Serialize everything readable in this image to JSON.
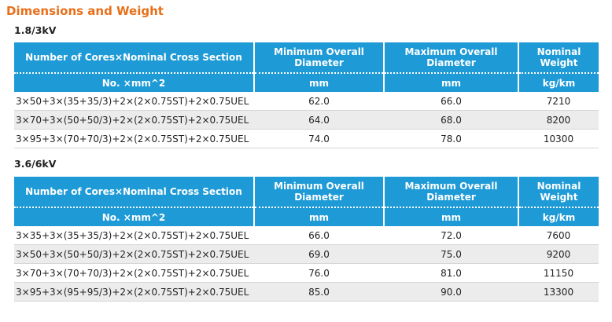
{
  "title": "Dimensions and Weight",
  "tables": [
    {
      "voltage": "1.8/3kV",
      "headers": [
        "Number of Cores×Nominal Cross Section",
        "Minimum Overall Diameter",
        "Maximum Overall Diameter",
        "Nominal Weight"
      ],
      "units": [
        "No. ×mm^2",
        "mm",
        "mm",
        "kg/km"
      ],
      "rows": [
        [
          "3×50+3×(35+35/3)+2×(2×0.75ST)+2×0.75UEL",
          "62.0",
          "66.0",
          "7210"
        ],
        [
          "3×70+3×(50+50/3)+2×(2×0.75ST)+2×0.75UEL",
          "64.0",
          "68.0",
          "8200"
        ],
        [
          "3×95+3×(70+70/3)+2×(2×0.75ST)+2×0.75UEL",
          "74.0",
          "78.0",
          "10300"
        ]
      ]
    },
    {
      "voltage": "3.6/6kV",
      "headers": [
        "Number of Cores×Nominal Cross Section",
        "Minimum Overall Diameter",
        "Maximum Overall Diameter",
        "Nominal Weight"
      ],
      "units": [
        "No. ×mm^2",
        "mm",
        "mm",
        "kg/km"
      ],
      "rows": [
        [
          "3×35+3×(35+35/3)+2×(2×0.75ST)+2×0.75UEL",
          "66.0",
          "72.0",
          "7600"
        ],
        [
          "3×50+3×(50+50/3)+2×(2×0.75ST)+2×0.75UEL",
          "69.0",
          "75.0",
          "9200"
        ],
        [
          "3×70+3×(70+70/3)+2×(2×0.75ST)+2×0.75UEL",
          "76.0",
          "81.0",
          "11150"
        ],
        [
          "3×95+3×(95+95/3)+2×(2×0.75ST)+2×0.75UEL",
          "85.0",
          "90.0",
          "13300"
        ]
      ]
    }
  ]
}
